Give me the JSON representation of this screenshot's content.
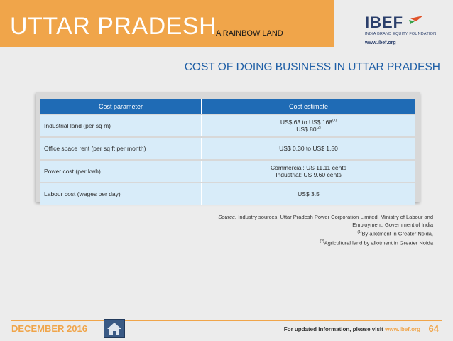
{
  "header": {
    "title": "UTTAR PRADESH",
    "subtitle": "A RAINBOW LAND",
    "logo": {
      "name": "IBEF",
      "tagline": "INDIA BRAND EQUITY FOUNDATION",
      "url": "www.ibef.org",
      "icon": "bird-icon"
    }
  },
  "heading": "COST OF DOING BUSINESS IN UTTAR PRADESH",
  "table": {
    "columns": [
      "Cost parameter",
      "Cost estimate"
    ],
    "rows": [
      {
        "param": "Industrial land (per sq m)",
        "line1": "US$ 63 to US$ 168",
        "sup1": "(1)",
        "line2": "US$ 80",
        "sup2": "(2)"
      },
      {
        "param": "Office space rent (per sq ft per month)",
        "line1": "US$ 0.30 to US$ 1.50"
      },
      {
        "param": "Power cost (per kwh)",
        "line1": "Commercial: US 11.11 cents",
        "line2": "Industrial: US 9.60 cents"
      },
      {
        "param": "Labour cost (wages per day)",
        "line1": "US$ 3.5"
      }
    ]
  },
  "source": {
    "label": "Source:",
    "text": "Industry sources, Uttar Pradesh Power Corporation Limited, Ministry of Labour and Employment, Government of India",
    "note1_mark": "(1)",
    "note1": "By allotment in Greater Noida,",
    "note2_mark": "(2)",
    "note2": "Agricultural land by allotment in Greater Noida"
  },
  "footer": {
    "date": "DECEMBER 2016",
    "visit_text": "For updated information, please visit",
    "visit_url": "www.ibef.org",
    "page_number": "64",
    "home_icon": "home-icon"
  },
  "colors": {
    "accent": "#f0a54a",
    "table_header": "#1f6bb5",
    "heading": "#1f5fa6",
    "row": "#d8ecf9"
  }
}
